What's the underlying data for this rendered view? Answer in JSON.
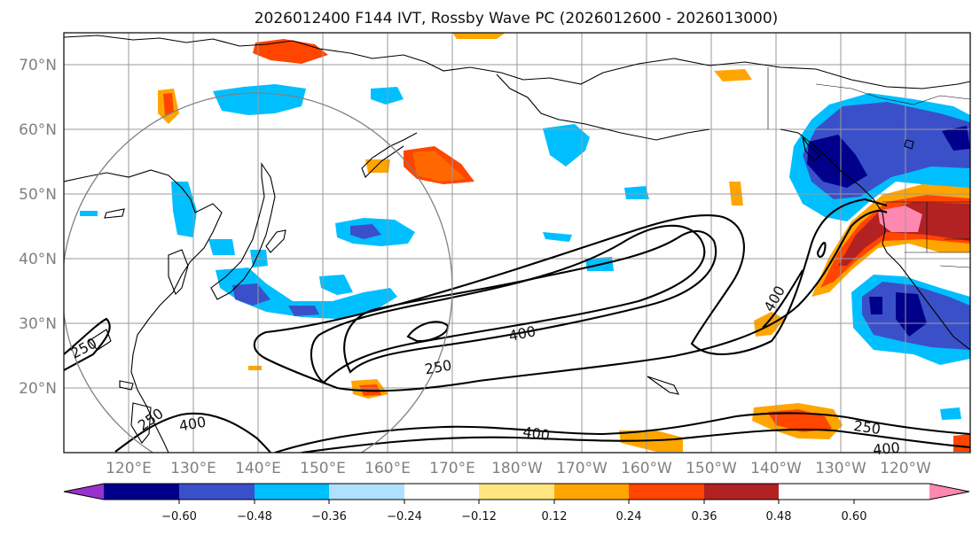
{
  "title": "2026012400 F144 IVT, Rossby Wave PC (2026012600 - 2026013000)",
  "map": {
    "lat_labels": [
      "70°N",
      "60°N",
      "50°N",
      "40°N",
      "30°N",
      "20°N"
    ],
    "lon_labels": [
      "120°E",
      "130°E",
      "140°E",
      "150°E",
      "160°E",
      "170°E",
      "180°W",
      "170°W",
      "160°W",
      "150°W",
      "140°W",
      "130°W",
      "120°W"
    ],
    "contour_labels": [
      "250",
      "250",
      "250",
      "250",
      "400",
      "400",
      "400",
      "400",
      "400"
    ]
  },
  "colorbar": {
    "colors": [
      "#9932cc",
      "#00008b",
      "#3a50c8",
      "#00bfff",
      "#b0e0ff",
      "#ffffff",
      "#ffe680",
      "#ffa500",
      "#ff4500",
      "#b22222",
      "#ff88b0"
    ],
    "tick_labels": [
      "−0.60",
      "−0.48",
      "−0.36",
      "−0.24",
      "−0.12",
      "0.12",
      "0.24",
      "0.36",
      "0.48",
      "0.60"
    ]
  }
}
